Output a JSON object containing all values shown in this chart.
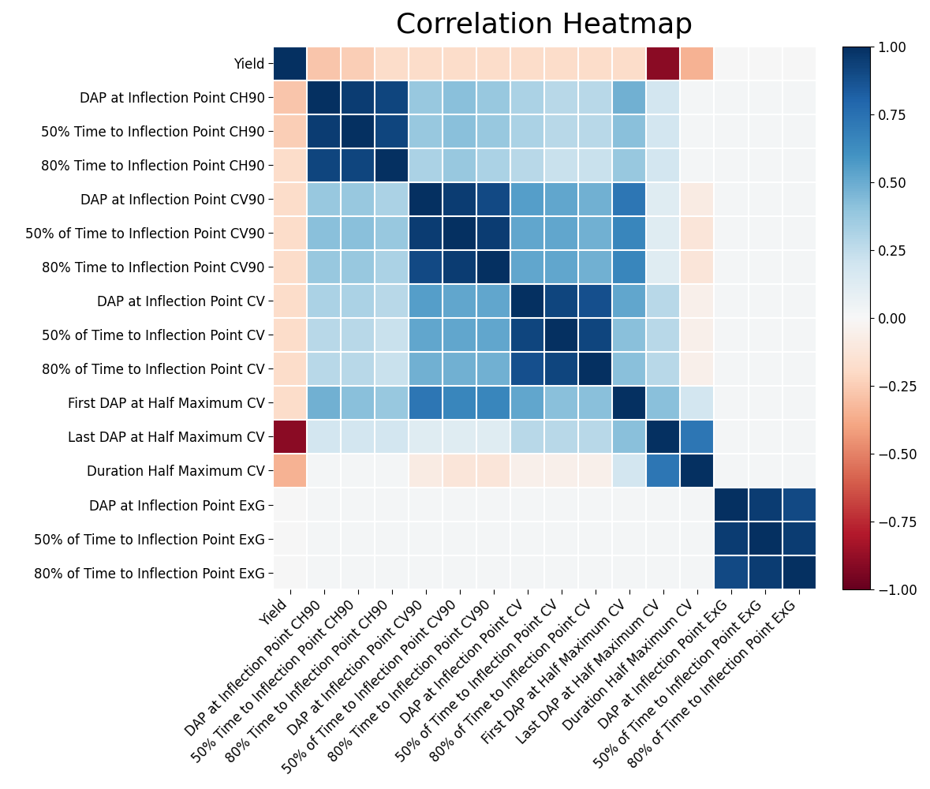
{
  "title": "Correlation Heatmap",
  "labels": [
    "Yield",
    "DAP at Inflection Point CH90",
    "50% Time to Inflection Point CH90",
    "80% Time to Inflection Point CH90",
    "DAP at Inflection Point CV90",
    "50% of Time to Inflection Point CV90",
    "80% Time to Inflection Point CV90",
    "DAP at Inflection Point CV",
    "50% of Time to Inflection Point CV",
    "80% of Time to Inflection Point CV",
    "First DAP at Half Maximum CV",
    "Last DAP at Half Maximum CV",
    "Duration Half Maximum CV",
    "DAP at Inflection Point ExG",
    "50% of Time to Inflection Point ExG",
    "80% of Time to Inflection Point ExG"
  ],
  "corr_matrix": [
    [
      1.0,
      -0.28,
      -0.25,
      -0.18,
      -0.18,
      -0.18,
      -0.18,
      -0.18,
      -0.18,
      -0.18,
      -0.18,
      -0.9,
      -0.35,
      0.0,
      0.0,
      0.0
    ],
    [
      -0.28,
      1.0,
      0.95,
      0.92,
      0.38,
      0.42,
      0.38,
      0.32,
      0.28,
      0.28,
      0.48,
      0.18,
      0.02,
      0.02,
      0.02,
      0.02
    ],
    [
      -0.25,
      0.95,
      1.0,
      0.92,
      0.38,
      0.42,
      0.38,
      0.32,
      0.28,
      0.28,
      0.42,
      0.18,
      0.02,
      0.02,
      0.02,
      0.02
    ],
    [
      -0.18,
      0.92,
      0.92,
      1.0,
      0.32,
      0.38,
      0.32,
      0.28,
      0.22,
      0.22,
      0.38,
      0.18,
      0.02,
      0.02,
      0.02,
      0.02
    ],
    [
      -0.18,
      0.38,
      0.38,
      0.32,
      1.0,
      0.95,
      0.9,
      0.55,
      0.52,
      0.48,
      0.72,
      0.12,
      -0.08,
      0.02,
      0.02,
      0.02
    ],
    [
      -0.18,
      0.42,
      0.42,
      0.38,
      0.95,
      1.0,
      0.95,
      0.52,
      0.52,
      0.48,
      0.65,
      0.12,
      -0.12,
      0.02,
      0.02,
      0.02
    ],
    [
      -0.18,
      0.38,
      0.38,
      0.32,
      0.9,
      0.95,
      1.0,
      0.52,
      0.52,
      0.48,
      0.65,
      0.12,
      -0.12,
      0.02,
      0.02,
      0.02
    ],
    [
      -0.18,
      0.32,
      0.32,
      0.28,
      0.55,
      0.52,
      0.52,
      1.0,
      0.92,
      0.88,
      0.52,
      0.28,
      -0.05,
      0.02,
      0.02,
      0.02
    ],
    [
      -0.18,
      0.28,
      0.28,
      0.22,
      0.52,
      0.52,
      0.52,
      0.92,
      1.0,
      0.92,
      0.42,
      0.28,
      -0.05,
      0.02,
      0.02,
      0.02
    ],
    [
      -0.18,
      0.28,
      0.28,
      0.22,
      0.48,
      0.48,
      0.48,
      0.88,
      0.92,
      1.0,
      0.42,
      0.28,
      -0.05,
      0.02,
      0.02,
      0.02
    ],
    [
      -0.18,
      0.48,
      0.42,
      0.38,
      0.72,
      0.65,
      0.65,
      0.52,
      0.42,
      0.42,
      1.0,
      0.42,
      0.18,
      0.02,
      0.02,
      0.02
    ],
    [
      -0.9,
      0.18,
      0.18,
      0.18,
      0.12,
      0.12,
      0.12,
      0.28,
      0.28,
      0.28,
      0.42,
      1.0,
      0.72,
      0.02,
      0.02,
      0.02
    ],
    [
      -0.35,
      0.02,
      0.02,
      0.02,
      -0.08,
      -0.12,
      -0.12,
      -0.05,
      -0.05,
      -0.05,
      0.18,
      0.72,
      1.0,
      0.02,
      0.02,
      0.02
    ],
    [
      0.0,
      0.02,
      0.02,
      0.02,
      0.02,
      0.02,
      0.02,
      0.02,
      0.02,
      0.02,
      0.02,
      0.02,
      0.02,
      1.0,
      0.95,
      0.9
    ],
    [
      0.0,
      0.02,
      0.02,
      0.02,
      0.02,
      0.02,
      0.02,
      0.02,
      0.02,
      0.02,
      0.02,
      0.02,
      0.02,
      0.95,
      1.0,
      0.95
    ],
    [
      0.0,
      0.02,
      0.02,
      0.02,
      0.02,
      0.02,
      0.02,
      0.02,
      0.02,
      0.02,
      0.02,
      0.02,
      0.02,
      0.9,
      0.95,
      1.0
    ]
  ],
  "cmap": "RdBu",
  "vmin": -1.0,
  "vmax": 1.0,
  "title_fontsize": 26,
  "tick_fontsize": 12,
  "colorbar_tick_fontsize": 12,
  "figsize": [
    11.79,
    10.0
  ],
  "dpi": 100,
  "colorbar_ticks": [
    -1.0,
    -0.75,
    -0.5,
    -0.25,
    0.0,
    0.25,
    0.5,
    0.75,
    1.0
  ],
  "colorbar_ticklabels": [
    "−1.00",
    "−0.75",
    "−0.50",
    "−0.25",
    "0.00",
    "0.25",
    "0.50",
    "0.75",
    "1.00"
  ]
}
